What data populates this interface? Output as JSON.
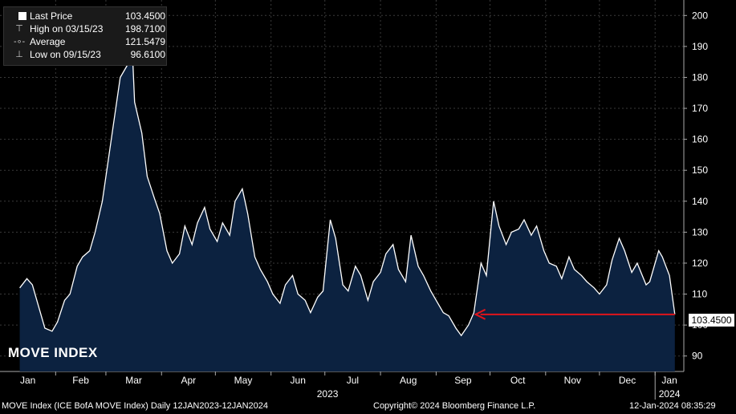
{
  "legend": {
    "last_label": "Last Price",
    "last_value": "103.4500",
    "high_label": "High on 03/15/23",
    "high_value": "198.7100",
    "avg_label": "Average",
    "avg_value": "121.5479",
    "low_label": "Low on 09/15/23",
    "low_value": "96.6100"
  },
  "overlay_title": "MOVE INDEX",
  "last_price_tag": "103.4500",
  "footer": {
    "left": "MOVE Index (ICE BofA MOVE Index)  Daily 12JAN2023-12JAN2024",
    "center": "Copyright© 2024 Bloomberg Finance L.P.",
    "right": "12-Jan-2024 08:35:29"
  },
  "colors": {
    "line": "#ffffff",
    "fill": "#0c2240",
    "arrow": "#e0141b",
    "background": "#000000"
  },
  "chart_data": {
    "type": "area",
    "ylim": [
      85,
      205
    ],
    "yticks": [
      90,
      100,
      110,
      120,
      130,
      140,
      150,
      160,
      170,
      180,
      190,
      200
    ],
    "xlabels": [
      "Jan",
      "Feb",
      "Mar",
      "Apr",
      "May",
      "Jun",
      "Jul",
      "Aug",
      "Sep",
      "Oct",
      "Nov",
      "Dec",
      "Jan"
    ],
    "year_labels": [
      "2023",
      "2024"
    ],
    "grid": true,
    "series": [
      {
        "x": [
          "2023-01-12",
          "2023-01-16",
          "2023-01-19",
          "2023-01-23",
          "2023-01-26",
          "2023-01-30",
          "2023-02-02",
          "2023-02-06",
          "2023-02-09",
          "2023-02-13",
          "2023-02-16",
          "2023-02-20",
          "2023-02-23",
          "2023-02-27",
          "2023-03-02",
          "2023-03-06",
          "2023-03-09",
          "2023-03-13",
          "2023-03-15",
          "2023-03-17",
          "2023-03-21",
          "2023-03-24",
          "2023-03-28",
          "2023-03-31",
          "2023-04-04",
          "2023-04-07",
          "2023-04-11",
          "2023-04-14",
          "2023-04-18",
          "2023-04-21",
          "2023-04-25",
          "2023-04-28",
          "2023-05-02",
          "2023-05-05",
          "2023-05-09",
          "2023-05-12",
          "2023-05-16",
          "2023-05-19",
          "2023-05-23",
          "2023-05-26",
          "2023-05-30",
          "2023-06-02",
          "2023-06-06",
          "2023-06-09",
          "2023-06-13",
          "2023-06-16",
          "2023-06-20",
          "2023-06-23",
          "2023-06-27",
          "2023-06-30",
          "2023-07-04",
          "2023-07-07",
          "2023-07-11",
          "2023-07-14",
          "2023-07-18",
          "2023-07-21",
          "2023-07-25",
          "2023-07-28",
          "2023-08-01",
          "2023-08-04",
          "2023-08-08",
          "2023-08-11",
          "2023-08-15",
          "2023-08-18",
          "2023-08-22",
          "2023-08-25",
          "2023-08-29",
          "2023-09-01",
          "2023-09-05",
          "2023-09-08",
          "2023-09-12",
          "2023-09-15",
          "2023-09-19",
          "2023-09-22",
          "2023-09-26",
          "2023-09-29",
          "2023-10-03",
          "2023-10-06",
          "2023-10-10",
          "2023-10-13",
          "2023-10-17",
          "2023-10-20",
          "2023-10-24",
          "2023-10-27",
          "2023-10-31",
          "2023-11-03",
          "2023-11-07",
          "2023-11-10",
          "2023-11-14",
          "2023-11-17",
          "2023-11-21",
          "2023-11-24",
          "2023-11-28",
          "2023-12-01",
          "2023-12-05",
          "2023-12-08",
          "2023-12-12",
          "2023-12-15",
          "2023-12-19",
          "2023-12-22",
          "2023-12-27",
          "2023-12-29",
          "2024-01-03",
          "2024-01-05",
          "2024-01-09",
          "2024-01-12"
        ],
        "values": [
          112,
          115,
          113,
          105,
          99,
          98,
          101,
          108,
          110,
          119,
          122,
          124,
          130,
          140,
          152,
          168,
          180,
          184,
          198.71,
          172,
          162,
          148,
          141,
          136,
          124,
          120,
          123,
          132,
          126,
          133,
          138,
          131,
          127,
          133,
          129,
          140,
          144,
          136,
          122,
          118,
          114,
          110,
          107,
          113,
          116,
          110,
          108,
          104,
          109,
          111,
          134,
          128,
          113,
          111,
          119,
          116,
          108,
          114,
          117,
          123,
          126,
          118,
          114,
          129,
          119,
          116,
          111,
          108,
          104,
          103,
          99,
          96.61,
          100,
          104,
          120,
          116,
          140,
          132,
          126,
          130,
          131,
          134,
          129,
          132,
          124,
          120,
          119,
          115,
          122,
          118,
          116,
          114,
          112,
          110,
          113,
          121,
          128,
          124,
          117,
          120,
          113,
          114,
          124,
          122,
          116,
          103.45
        ]
      }
    ],
    "arrow_annotation": {
      "y": 103.45,
      "x_start": "2023-09-23",
      "x_end": "2024-01-12"
    }
  }
}
